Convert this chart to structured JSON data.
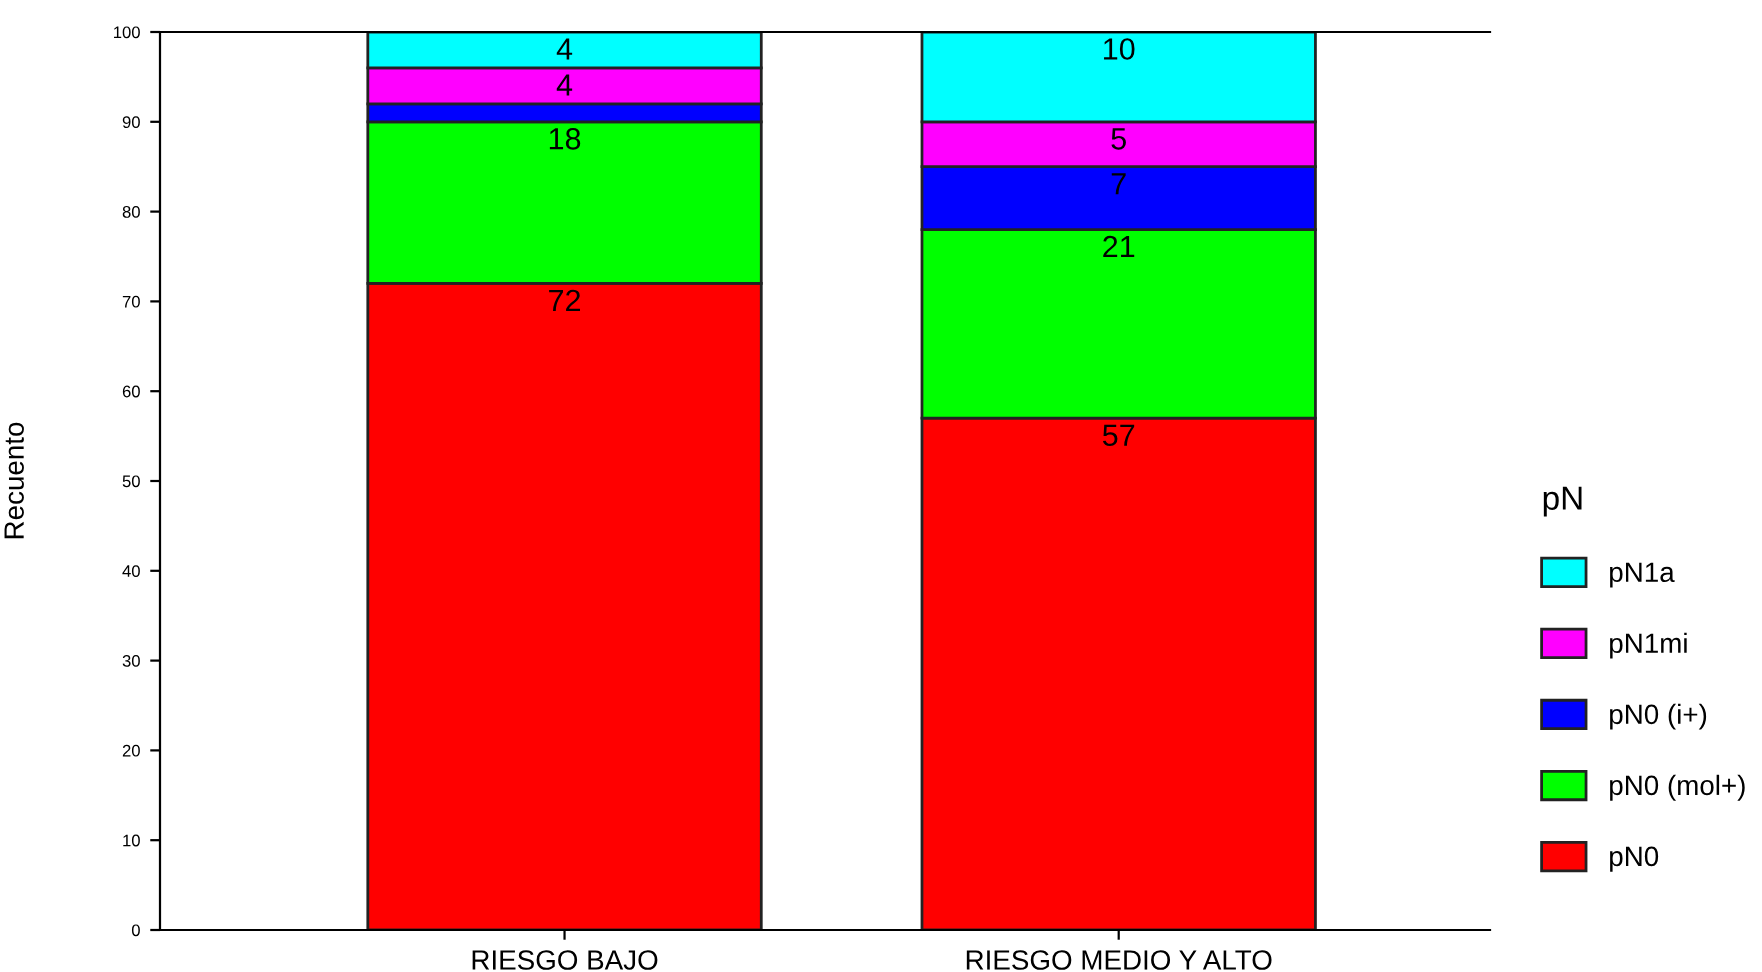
{
  "chart_data": {
    "type": "bar",
    "stacked": true,
    "ylabel": "Recuento",
    "legend_title": "pN",
    "legend": "right",
    "categories": [
      "RIESGO BAJO",
      "RIESGO MEDIO Y ALTO"
    ],
    "ylim": [
      0,
      100
    ],
    "yticks": [
      0,
      10,
      20,
      30,
      40,
      50,
      60,
      70,
      80,
      90,
      100
    ],
    "grid": false,
    "series": [
      {
        "name": "pN0",
        "color": "#ff0000",
        "values": [
          72,
          57
        ],
        "value_labels": [
          "72",
          "57"
        ]
      },
      {
        "name": "pN0 (mol+)",
        "color": "#00ff00",
        "values": [
          18,
          21
        ],
        "value_labels": [
          "18",
          "21"
        ]
      },
      {
        "name": "pN0 (i+)",
        "color": "#0000ff",
        "values": [
          2,
          7
        ],
        "value_labels": [
          null,
          "7"
        ]
      },
      {
        "name": "pN1mi",
        "color": "#ff00ff",
        "values": [
          4,
          5
        ],
        "value_labels": [
          "4",
          "5"
        ]
      },
      {
        "name": "pN1a",
        "color": "#00ffff",
        "values": [
          4,
          10
        ],
        "value_labels": [
          "4",
          "10"
        ]
      }
    ]
  }
}
